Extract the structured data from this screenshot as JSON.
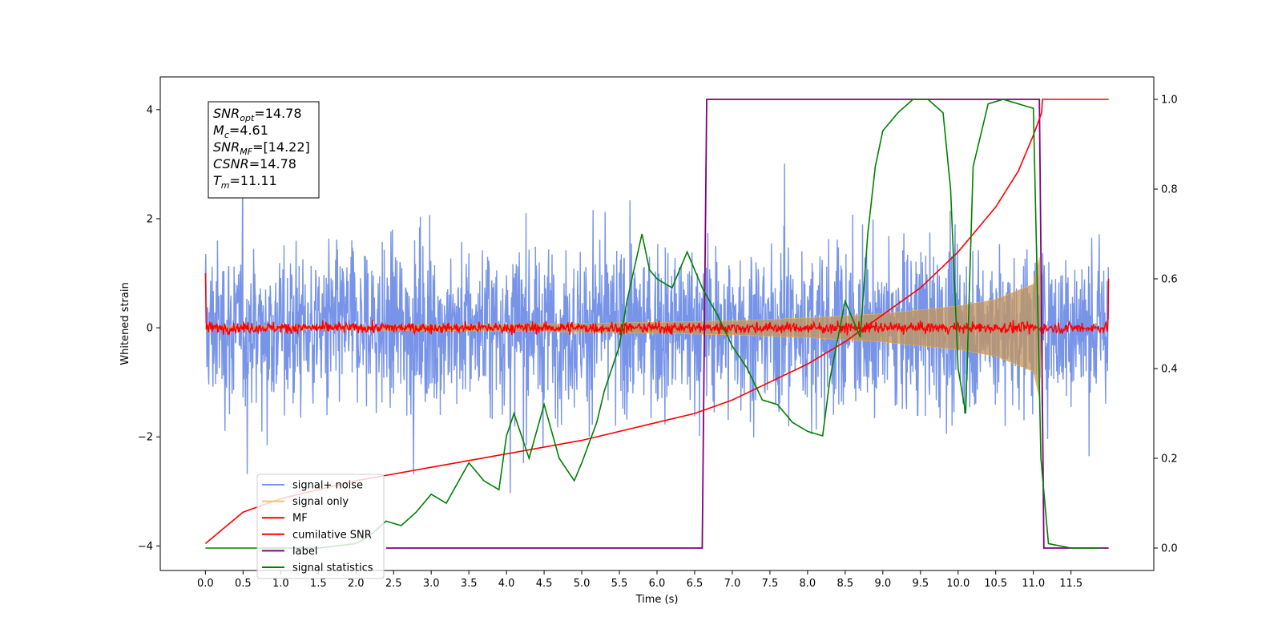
{
  "chart_data": {
    "type": "line",
    "title": "",
    "xlabel": "Time (s)",
    "ylabel": "Whitened strain",
    "xlim": [
      -0.6,
      12.6
    ],
    "ylim_left": [
      -4.45,
      4.6
    ],
    "ylim_right": [
      -0.05,
      1.05
    ],
    "x_ticks": [
      0.0,
      0.5,
      1.0,
      1.5,
      2.0,
      2.5,
      3.0,
      3.5,
      4.0,
      4.5,
      5.0,
      5.5,
      6.0,
      6.5,
      7.0,
      7.5,
      8.0,
      8.5,
      9.0,
      9.5,
      10.0,
      10.5,
      11.0,
      11.5
    ],
    "x_tick_labels": [
      "0.0",
      "0.5",
      "1.0",
      "1.5",
      "2.0",
      "2.5",
      "3.0",
      "3.5",
      "4.0",
      "4.5",
      "5.0",
      "5.5",
      "6.0",
      "6.5",
      "7.0",
      "7.5",
      "8.0",
      "8.5",
      "9.0",
      "9.5",
      "10.0",
      "10.5",
      "11.0",
      "11.5"
    ],
    "y_left_ticks": [
      -4,
      -2,
      0,
      2,
      4
    ],
    "y_left_tick_labels": [
      "−4",
      "−2",
      "0",
      "2",
      "4"
    ],
    "y_right_ticks": [
      0.0,
      0.2,
      0.4,
      0.6,
      0.8,
      1.0
    ],
    "y_right_tick_labels": [
      "0.0",
      "0.2",
      "0.4",
      "0.6",
      "0.8",
      "1.0"
    ],
    "grid": false,
    "legend_placement": "lower-left",
    "legend": [
      {
        "label": "signal+ noise",
        "color": "#6b8be6"
      },
      {
        "label": "signal only",
        "color": "#f5b640"
      },
      {
        "label": "MF",
        "color": "#ff0000"
      },
      {
        "label": "cumilative SNR",
        "color": "#ff0000"
      },
      {
        "label": "label",
        "color": "#800080"
      },
      {
        "label": "signal statistics",
        "color": "#008000"
      }
    ],
    "annotation_box": {
      "lines": [
        {
          "sym": "SNR",
          "sub": "opt",
          "val": "=14.78"
        },
        {
          "sym": "M",
          "sub": "c",
          "val": "=4.61"
        },
        {
          "sym": "SNR",
          "sub": "MF",
          "val": "=[14.22]"
        },
        {
          "sym": "CSNR",
          "sub": "",
          "val": "=14.78"
        },
        {
          "sym": "T",
          "sub": "m",
          "val": "=11.11"
        }
      ]
    },
    "series": [
      {
        "name": "signal+ noise",
        "axis": "left",
        "color": "#6b8be6",
        "description_range": [
          -4.0,
          4.2
        ],
        "x_range": [
          0.0,
          12.0
        ],
        "approx_envelope_std": 1.05
      },
      {
        "name": "signal only",
        "axis": "left",
        "color": "#f5b640",
        "x": [
          0.0,
          2.0,
          4.0,
          6.0,
          7.0,
          8.0,
          9.0,
          10.0,
          10.5,
          11.0,
          11.1,
          11.11
        ],
        "amplitude": [
          0.03,
          0.04,
          0.06,
          0.1,
          0.13,
          0.18,
          0.26,
          0.4,
          0.52,
          0.8,
          1.4,
          0.0
        ]
      },
      {
        "name": "MF",
        "axis": "left",
        "color": "#ff0000",
        "x_range": [
          0.0,
          12.0
        ],
        "baseline": 0.0,
        "approx_noise_std": 0.07,
        "edge_values": {
          "start": 1.0,
          "end": 0.9
        }
      },
      {
        "name": "cumilative SNR",
        "axis": "right",
        "color": "#ff0000",
        "x": [
          0.0,
          0.5,
          1.0,
          2.0,
          3.0,
          4.0,
          5.0,
          6.0,
          6.5,
          7.0,
          7.5,
          8.0,
          8.5,
          9.0,
          9.5,
          10.0,
          10.5,
          10.8,
          11.0,
          11.11,
          11.12,
          12.0
        ],
        "y": [
          0.01,
          0.08,
          0.11,
          0.15,
          0.18,
          0.21,
          0.24,
          0.28,
          0.3,
          0.33,
          0.37,
          0.41,
          0.46,
          0.52,
          0.58,
          0.66,
          0.76,
          0.84,
          0.92,
          0.97,
          1.0,
          1.0
        ]
      },
      {
        "name": "label",
        "axis": "right",
        "color": "#800080",
        "x": [
          2.4,
          6.6,
          6.66,
          11.08,
          11.14,
          12.0
        ],
        "y": [
          0.0,
          0.0,
          1.0,
          1.0,
          0.0,
          0.0
        ]
      },
      {
        "name": "signal statistics",
        "axis": "right",
        "color": "#008000",
        "x": [
          0.0,
          0.5,
          1.0,
          1.5,
          2.0,
          2.2,
          2.4,
          2.6,
          2.8,
          3.0,
          3.2,
          3.4,
          3.5,
          3.7,
          3.9,
          4.0,
          4.1,
          4.3,
          4.5,
          4.7,
          4.9,
          5.0,
          5.2,
          5.3,
          5.5,
          5.6,
          5.8,
          5.9,
          6.0,
          6.2,
          6.4,
          6.6,
          6.8,
          7.0,
          7.2,
          7.4,
          7.6,
          7.8,
          8.0,
          8.2,
          8.3,
          8.5,
          8.7,
          8.8,
          8.9,
          9.0,
          9.2,
          9.4,
          9.6,
          9.8,
          9.9,
          10.0,
          10.1,
          10.2,
          10.4,
          10.6,
          10.8,
          11.0,
          11.05,
          11.1,
          11.2,
          11.5,
          11.9
        ],
        "y": [
          0.0,
          0.0,
          0.0,
          0.0,
          0.01,
          0.03,
          0.06,
          0.05,
          0.08,
          0.12,
          0.1,
          0.16,
          0.19,
          0.15,
          0.13,
          0.25,
          0.3,
          0.2,
          0.32,
          0.2,
          0.15,
          0.19,
          0.28,
          0.35,
          0.45,
          0.55,
          0.7,
          0.62,
          0.6,
          0.58,
          0.66,
          0.58,
          0.52,
          0.45,
          0.4,
          0.33,
          0.32,
          0.28,
          0.26,
          0.25,
          0.38,
          0.55,
          0.47,
          0.7,
          0.85,
          0.93,
          0.97,
          1.0,
          1.0,
          0.97,
          0.8,
          0.4,
          0.3,
          0.85,
          0.99,
          1.0,
          0.99,
          0.98,
          0.6,
          0.2,
          0.01,
          0.0,
          0.0
        ]
      }
    ]
  }
}
